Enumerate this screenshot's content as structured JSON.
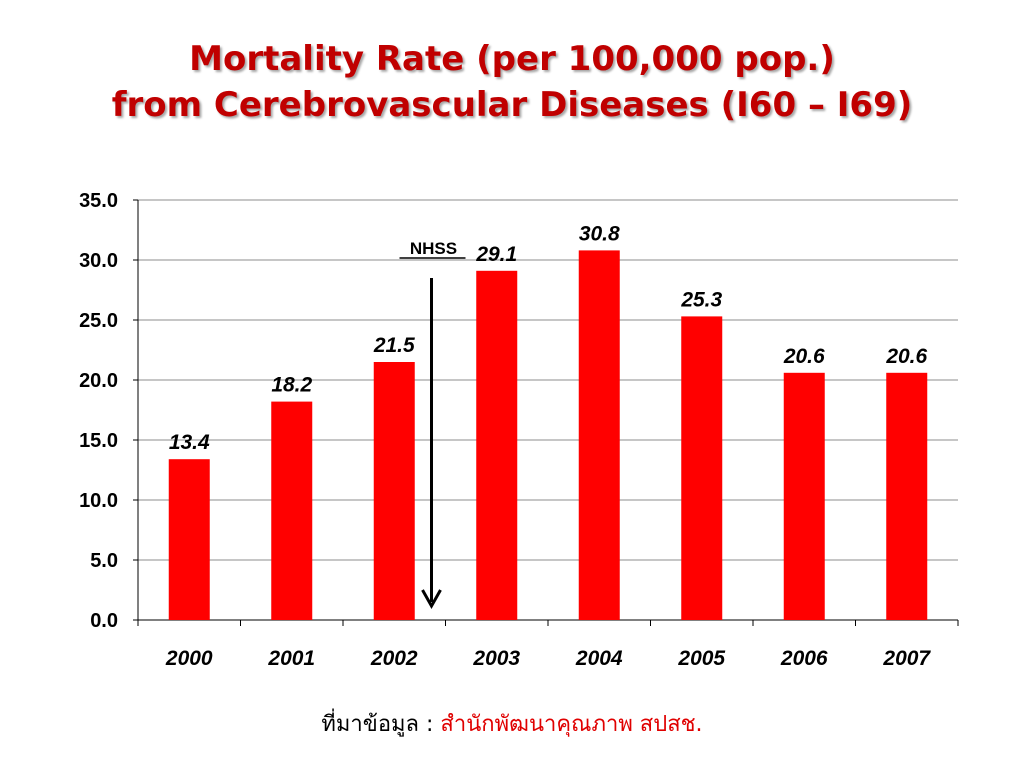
{
  "title": {
    "line1": "Mortality Rate (per 100,000 pop.)",
    "line2": "from Cerebrovascular Diseases (I60 – I69)"
  },
  "source": {
    "label": "ที่มาข้อมูล : ",
    "value": "สำนักพัฒนาคุณภาพ สปสช."
  },
  "chart_data": {
    "type": "bar",
    "categories": [
      "2000",
      "2001",
      "2002",
      "2003",
      "2004",
      "2005",
      "2006",
      "2007"
    ],
    "values": [
      13.4,
      18.2,
      21.5,
      29.1,
      30.8,
      25.3,
      20.6,
      20.6
    ],
    "value_labels": [
      "13.4",
      "18.2",
      "21.5",
      "29.1",
      "30.8",
      "25.3",
      "20.6",
      "20.6"
    ],
    "ylim": [
      0,
      35
    ],
    "yticks": [
      "0.0",
      "5.0",
      "10.0",
      "15.0",
      "20.0",
      "25.0",
      "30.0",
      "35.0"
    ],
    "grid": true,
    "legend": "none",
    "bar_color": "#ff0000",
    "title_color": "#c00000",
    "annotation": {
      "text": "NHSS",
      "between_categories": [
        "2002",
        "2003"
      ],
      "arrow": "down"
    }
  }
}
